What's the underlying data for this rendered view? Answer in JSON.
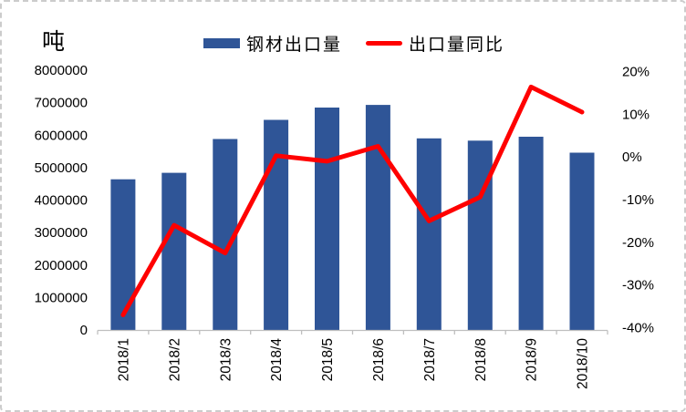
{
  "chart_data": {
    "type": "bar",
    "subtype": "combo-bar-line",
    "title": "",
    "unit_label": "吨",
    "categories": [
      "2018/1",
      "2018/2",
      "2018/3",
      "2018/4",
      "2018/5",
      "2018/6",
      "2018/7",
      "2018/8",
      "2018/9",
      "2018/10"
    ],
    "series": [
      {
        "name": "钢材出口量",
        "type": "bar",
        "axis": "left",
        "color": "#2F5597",
        "values": [
          4640000,
          4840000,
          5880000,
          6470000,
          6850000,
          6930000,
          5900000,
          5830000,
          5950000,
          5460000
        ]
      },
      {
        "name": "出口量同比",
        "type": "line",
        "axis": "right",
        "color": "#FF0000",
        "values": [
          -37,
          -16,
          -22.5,
          0.3,
          -1,
          2.5,
          -15,
          -9.4,
          16.4,
          10.5
        ]
      }
    ],
    "left_axis": {
      "min": 0,
      "max": 8000000,
      "step": 1000000,
      "tick_labels": [
        "0",
        "1000000",
        "2000000",
        "3000000",
        "4000000",
        "5000000",
        "6000000",
        "7000000",
        "8000000"
      ]
    },
    "right_axis": {
      "min": -40,
      "max": 20,
      "step": 10,
      "tick_labels": [
        "-40%",
        "-30%",
        "-20%",
        "-10%",
        "0%",
        "10%",
        "20%"
      ]
    },
    "legend_position": "top",
    "grid": false,
    "axis_line_color": "#BFBFBF",
    "text_color": "#000000"
  }
}
